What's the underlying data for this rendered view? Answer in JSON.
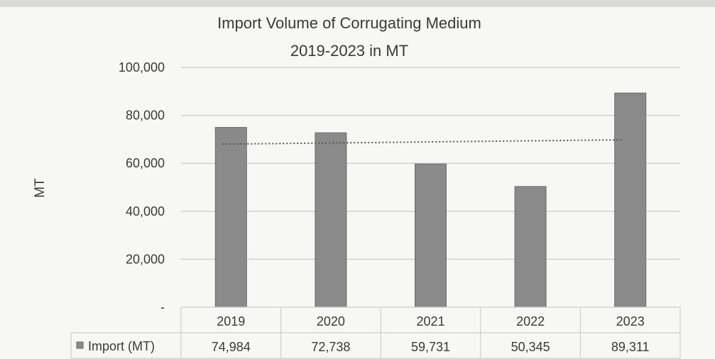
{
  "chart_data": {
    "type": "bar",
    "title": [
      "Import Volume  of Corrugating Medium",
      "2019-2023 in MT"
    ],
    "ylabel": "MT",
    "xlabel": "",
    "ylim": [
      0,
      100000
    ],
    "y_ticks": [
      {
        "value": 100000,
        "label": "100,000"
      },
      {
        "value": 80000,
        "label": "80,000"
      },
      {
        "value": 60000,
        "label": "60,000"
      },
      {
        "value": 40000,
        "label": "40,000"
      },
      {
        "value": 20000,
        "label": "20,000"
      },
      {
        "value": 0,
        "label": "-"
      }
    ],
    "categories": [
      "2019",
      "2020",
      "2021",
      "2022",
      "2023"
    ],
    "series": [
      {
        "name": "Import (MT)",
        "values": [
          74984,
          72738,
          59731,
          50345,
          89311
        ],
        "value_labels": [
          "74,984",
          "72,738",
          "59,731",
          "50,345",
          "89,311"
        ]
      }
    ],
    "trendline": {
      "start_value": 68000,
      "end_value": 69800,
      "style": "dotted"
    },
    "grid": true,
    "data_table": true,
    "legend": "data-table",
    "colors": {
      "bar": "#8a8a8a",
      "bar_edge": "#6a6a6a",
      "grid": "#d2d2d2",
      "trend": "#555555"
    }
  }
}
